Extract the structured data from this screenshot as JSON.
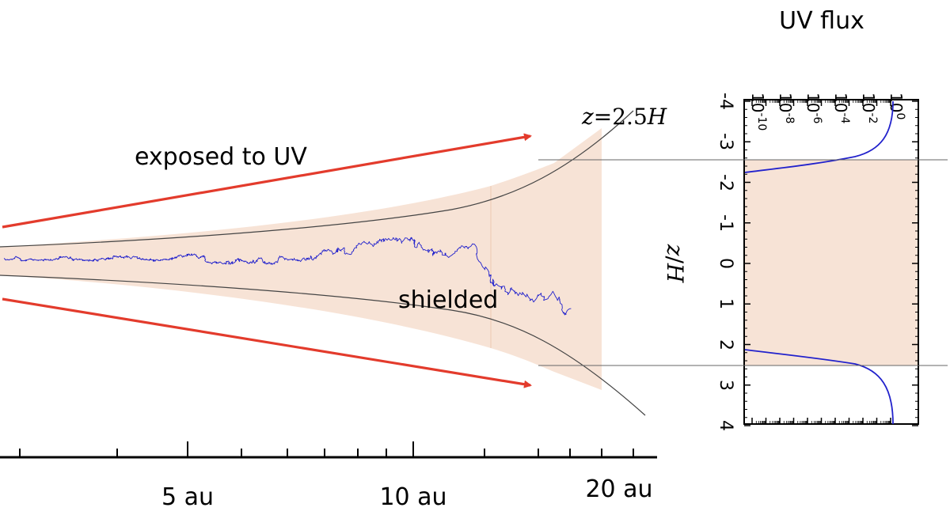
{
  "diagram": {
    "exposed_label": "exposed to UV",
    "shielded_label": "shielded",
    "surface_label_var": "z",
    "surface_label_eq": "=2.5",
    "surface_label_h": "H",
    "colors": {
      "arrow": "#e33b2c",
      "shading": "#f7e3d6",
      "walk": "#2222cc",
      "curve": "#444444"
    }
  },
  "radial_axis": {
    "tick_labels": [
      "5 au",
      "10 au",
      "20 au"
    ]
  },
  "uv_panel": {
    "title": "UV flux",
    "ylabel_var": "z",
    "ylabel_sep": "/",
    "ylabel_h": "H",
    "y_ticks": [
      "-4",
      "-3",
      "-2",
      "-1",
      "0",
      "1",
      "2",
      "3",
      "4"
    ],
    "x_ticks_base": "10",
    "x_ticks_exp": [
      "-10",
      "-8",
      "-6",
      "-4",
      "-2",
      "0"
    ],
    "chart_data": {
      "type": "line",
      "x_scale": "log",
      "xlim": [
        1e-10,
        1
      ],
      "ylim": [
        -4,
        4
      ],
      "surface_z": [
        -2.5,
        2.5
      ]
    }
  }
}
